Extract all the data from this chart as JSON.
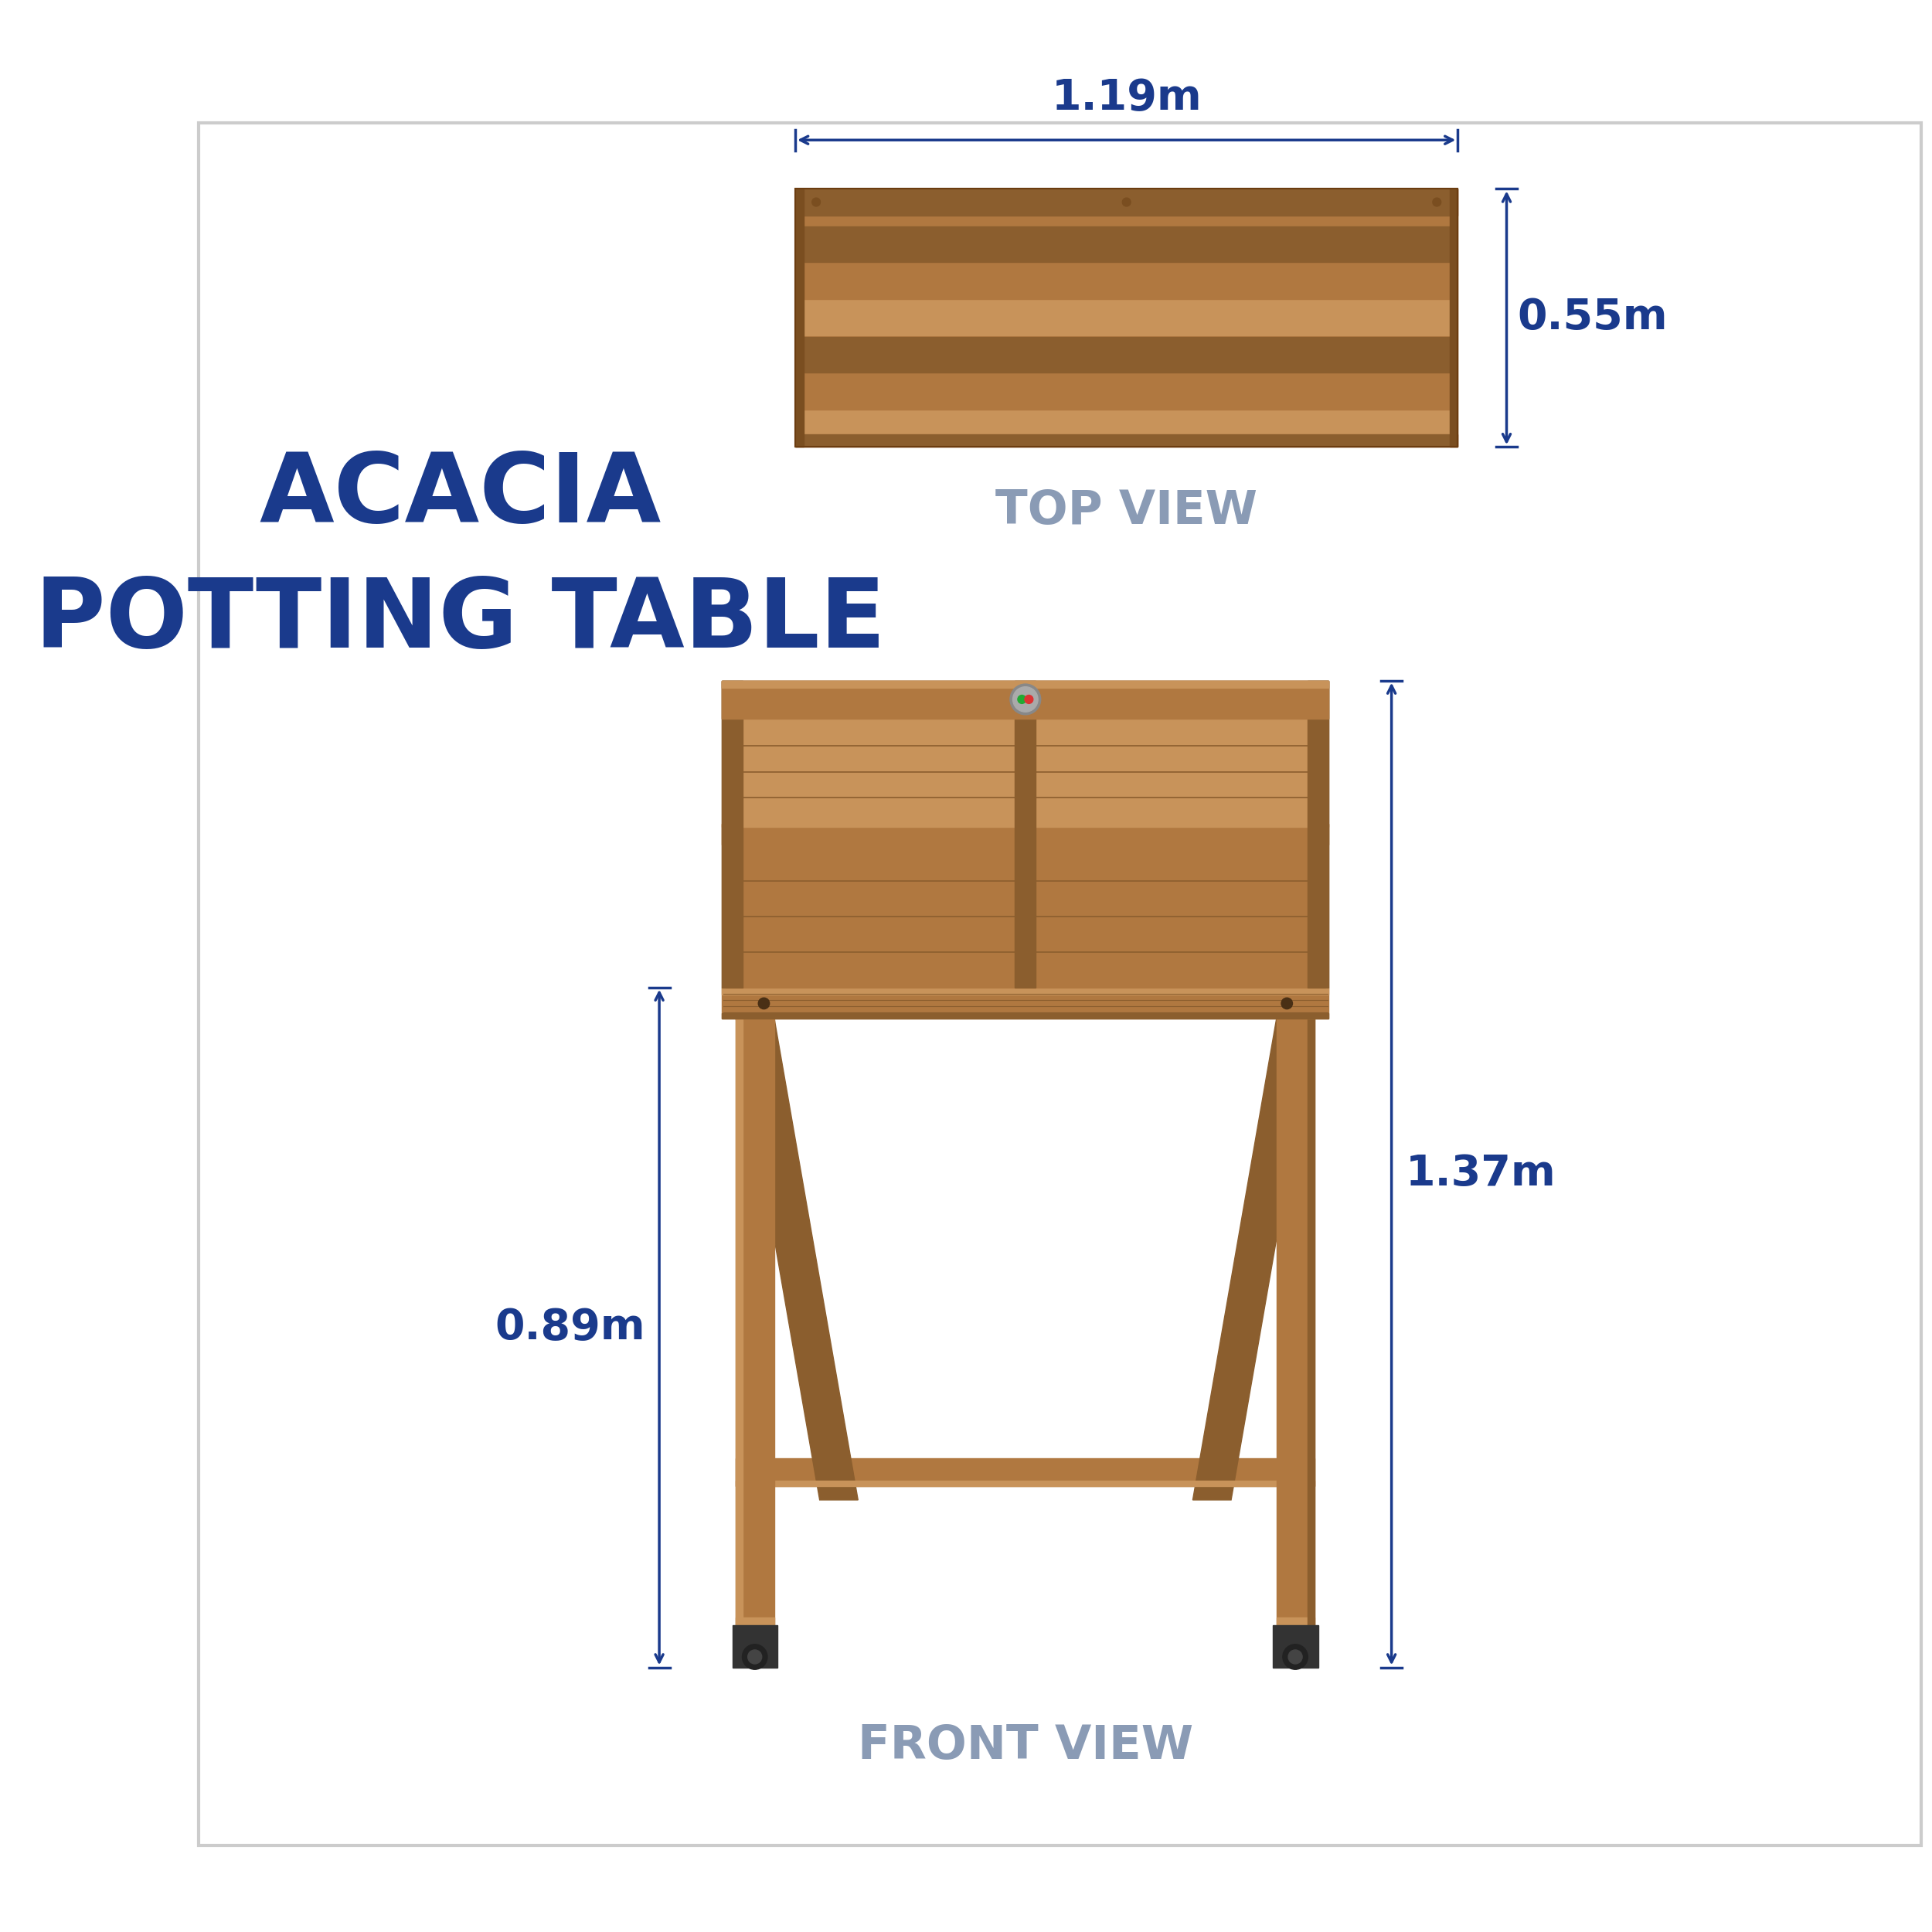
{
  "title_line1": "ACACIA",
  "title_line2": "POTTING TABLE",
  "title_color": "#1a3a8c",
  "title_fontsize": 90,
  "dim_color": "#1a3a8c",
  "view_label_color": "#8a9bb5",
  "dim_fontsize": 36,
  "view_label_fontsize": 44,
  "top_view_label": "TOP VIEW",
  "front_view_label": "FRONT VIEW",
  "width_dim": "1.19m",
  "depth_dim": "0.55m",
  "height_dim": "1.37m",
  "table_height_dim": "0.89m",
  "background_color": "#ffffff",
  "wood_color_light": "#c8935a",
  "wood_color_mid": "#b07840",
  "wood_color_dark": "#8b5e2e",
  "wood_color_shadow": "#7a4e20",
  "arrow_color": "#1a3a8c",
  "arrow_linewidth": 2.5
}
